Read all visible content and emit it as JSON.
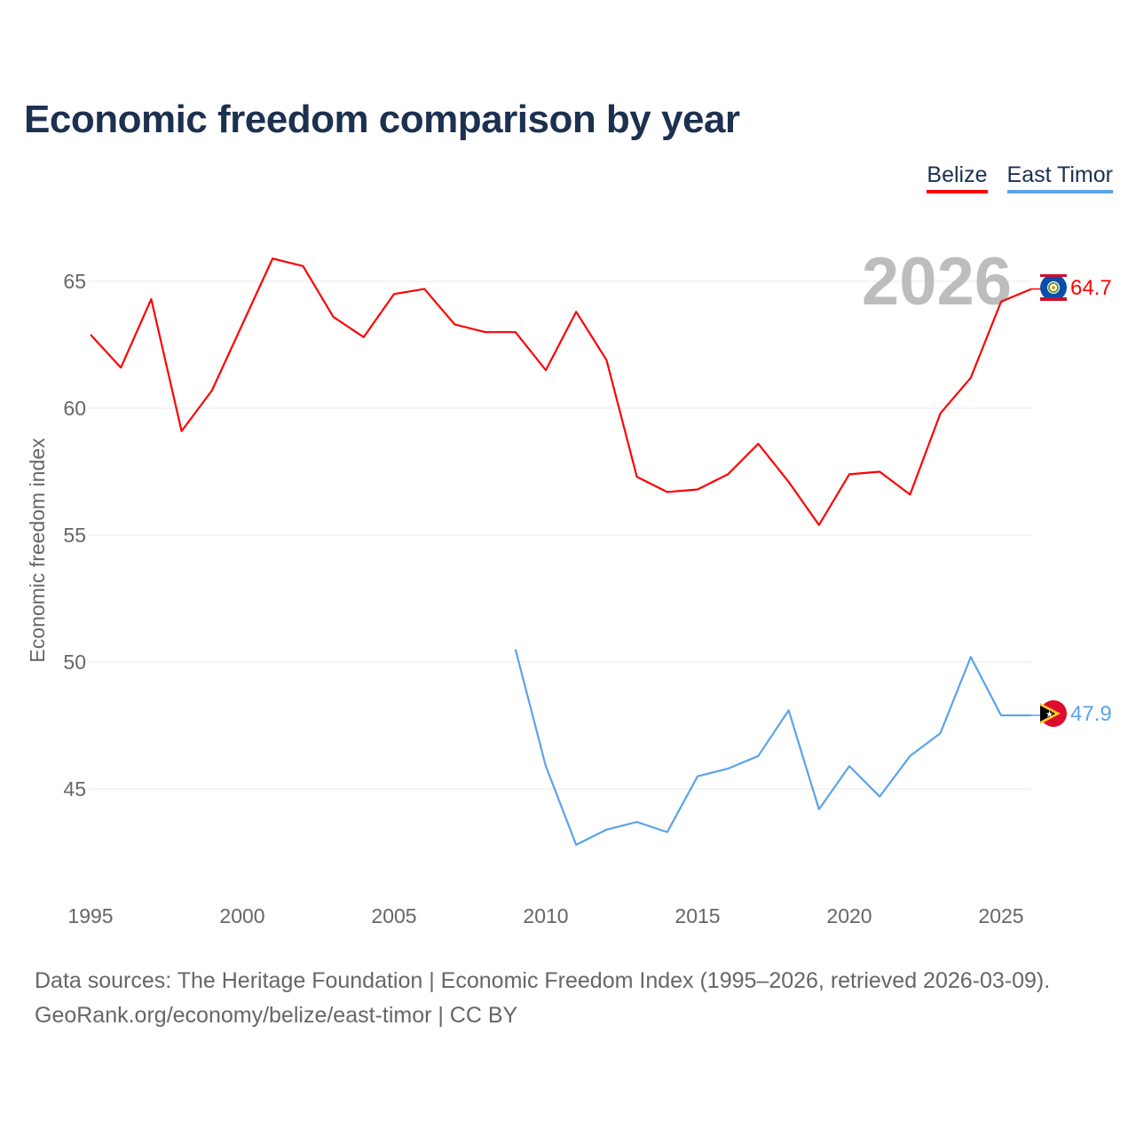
{
  "chart_data": {
    "type": "line",
    "title": "Economic freedom comparison by year",
    "xlabel": "",
    "ylabel": "Economic freedom index",
    "xlim": [
      1995,
      2026
    ],
    "ylim": [
      41.5,
      67.5
    ],
    "x_ticks": [
      1995,
      2000,
      2005,
      2010,
      2015,
      2020,
      2025
    ],
    "y_ticks": [
      45,
      50,
      55,
      60,
      65
    ],
    "grid": true,
    "legend_placement": "top-right",
    "year_label": "2026",
    "series": [
      {
        "name": "Belize",
        "color": "#ff0000",
        "end_label": "64.7",
        "x": [
          1995,
          1996,
          1997,
          1998,
          1999,
          2000,
          2001,
          2002,
          2003,
          2004,
          2005,
          2006,
          2007,
          2008,
          2009,
          2010,
          2011,
          2012,
          2013,
          2014,
          2015,
          2016,
          2017,
          2018,
          2019,
          2020,
          2021,
          2022,
          2023,
          2024,
          2025,
          2026
        ],
        "values": [
          62.9,
          61.6,
          64.3,
          59.1,
          60.7,
          63.3,
          65.9,
          65.6,
          63.6,
          62.8,
          64.5,
          64.7,
          63.3,
          63.0,
          63.0,
          61.5,
          63.8,
          61.9,
          57.3,
          56.7,
          56.8,
          57.4,
          58.6,
          57.1,
          55.4,
          57.4,
          57.5,
          56.6,
          59.8,
          61.2,
          64.2,
          64.7
        ]
      },
      {
        "name": "East Timor",
        "color": "#5ba3ea",
        "end_label": "47.9",
        "x": [
          2009,
          2010,
          2011,
          2012,
          2013,
          2014,
          2015,
          2016,
          2017,
          2018,
          2019,
          2020,
          2021,
          2022,
          2023,
          2024,
          2025,
          2026
        ],
        "values": [
          50.5,
          45.9,
          42.8,
          43.4,
          43.7,
          43.3,
          45.5,
          45.8,
          46.3,
          48.1,
          44.2,
          45.9,
          44.7,
          46.3,
          47.2,
          50.2,
          47.9,
          47.9
        ]
      }
    ]
  },
  "footer": {
    "sources": "Data sources: The Heritage Foundation | Economic Freedom Index (1995–2026, retrieved 2026-03-09).",
    "credit": "GeoRank.org/economy/belize/east-timor | CC BY"
  }
}
